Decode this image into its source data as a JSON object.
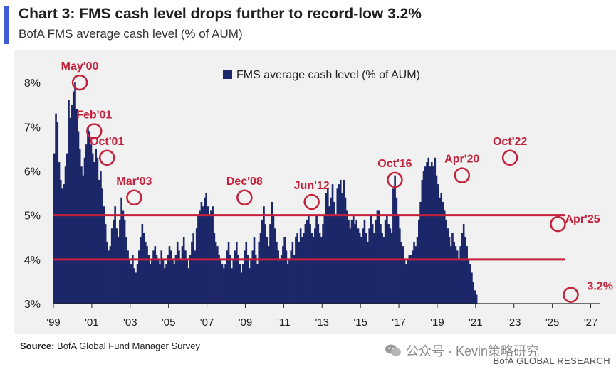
{
  "header": {
    "title": "Chart 3: FMS cash level drops further to record-low 3.2%",
    "subtitle": "BofA FMS average cash level (% of AUM)"
  },
  "footer": {
    "source_label": "Source:",
    "source_text": "BofA Global Fund Manager Survey",
    "watermark": "公众号 · Kevin策略研究",
    "brand": "BofA GLOBAL RESEARCH"
  },
  "colors": {
    "accent": "#3d5bd9",
    "bar": "#1c2769",
    "highlight": "#c4213a",
    "panel": "#f1f1f1"
  },
  "chart_data": {
    "type": "bar",
    "ylim": [
      3,
      8.5
    ],
    "xlim": [
      1999,
      2027.5
    ],
    "y_ticks": [
      "3%",
      "4%",
      "5%",
      "6%",
      "7%",
      "8%"
    ],
    "x_ticks": [
      "'99",
      "'01",
      "'03",
      "'05",
      "'07",
      "'09",
      "'11",
      "'13",
      "'15",
      "'17",
      "'19",
      "'21",
      "'23",
      "'25",
      "'27"
    ],
    "legend": "FMS average cash level (% of AUM)",
    "legend_position": "top-center",
    "reference_lines": [
      5.0,
      4.0
    ],
    "series": [
      {
        "name": "FMS average cash level (% of AUM)",
        "start": "1999-01",
        "frequency": "monthly",
        "values": [
          6.4,
          7.3,
          7.1,
          6.2,
          5.8,
          5.6,
          5.7,
          6.1,
          6.4,
          7.6,
          7.2,
          7.5,
          7.8,
          8.0,
          7.4,
          6.9,
          6.5,
          6.1,
          5.9,
          6.3,
          6.6,
          7.0,
          6.9,
          6.6,
          6.4,
          6.2,
          6.5,
          6.3,
          5.8,
          6.0,
          5.6,
          5.2,
          4.8,
          4.4,
          4.2,
          4.3,
          4.7,
          4.9,
          5.2,
          4.7,
          4.5,
          4.9,
          5.4,
          5.1,
          4.9,
          4.5,
          4.2,
          4.0,
          3.9,
          4.1,
          3.8,
          3.7,
          3.9,
          4.2,
          4.5,
          4.8,
          4.6,
          4.4,
          4.3,
          4.1,
          3.9,
          4.0,
          4.2,
          4.3,
          4.1,
          4.0,
          3.9,
          4.2,
          4.0,
          3.8,
          3.9,
          4.1,
          4.3,
          4.2,
          4.0,
          3.9,
          4.1,
          4.4,
          4.2,
          4.0,
          4.3,
          4.5,
          4.2,
          4.0,
          3.8,
          4.1,
          4.4,
          4.6,
          4.2,
          4.7,
          5.0,
          5.1,
          5.3,
          5.2,
          5.4,
          5.5,
          5.2,
          5.0,
          5.1,
          5.2,
          4.6,
          4.4,
          4.3,
          4.1,
          4.0,
          3.9,
          3.8,
          3.9,
          4.2,
          4.4,
          4.1,
          3.8,
          4.0,
          4.2,
          4.4,
          4.1,
          3.9,
          3.7,
          3.9,
          4.2,
          4.4,
          4.1,
          3.8,
          4.0,
          4.2,
          4.5,
          4.1,
          3.9,
          4.4,
          4.6,
          4.9,
          5.2,
          4.8,
          4.5,
          4.3,
          4.8,
          5.3,
          5.0,
          4.7,
          4.4,
          4.2,
          4.0,
          4.1,
          4.3,
          4.5,
          4.2,
          3.9,
          4.0,
          4.2,
          4.4,
          4.1,
          4.5,
          4.6,
          4.4,
          4.7,
          4.5,
          4.6,
          4.8,
          4.9,
          5.0,
          4.8,
          4.6,
          4.5,
          4.7,
          5.0,
          4.8,
          4.6,
          4.5,
          4.8,
          5.0,
          5.5,
          5.6,
          5.2,
          5.4,
          5.7,
          5.3,
          5.0,
          5.6,
          5.7,
          5.8,
          5.5,
          5.8,
          5.4,
          5.1,
          4.9,
          4.7,
          4.9,
          5.0,
          4.8,
          4.9,
          4.7,
          4.6,
          4.5,
          4.7,
          4.9,
          4.6,
          4.4,
          4.7,
          5.0,
          4.8,
          4.6,
          4.9,
          5.1,
          5.1,
          4.8,
          4.6,
          4.5,
          4.9,
          5.0,
          4.8,
          4.7,
          4.6,
          5.6,
          5.9,
          5.4,
          5.0,
          4.7,
          4.4,
          4.3,
          4.0,
          3.9,
          4.0,
          4.1,
          4.1,
          4.2,
          4.4,
          4.3,
          4.5,
          4.9,
          5.3,
          5.8,
          6.0,
          6.1,
          6.2,
          6.3,
          6.1,
          6.2,
          6.1,
          6.3,
          5.9,
          5.7,
          5.4,
          5.5,
          5.3,
          5.1,
          4.9,
          4.7,
          4.5,
          4.3,
          4.6,
          4.4,
          4.3,
          4.2,
          4.0,
          4.3,
          4.6,
          4.8,
          4.5,
          4.3,
          4.0,
          3.9,
          3.7,
          3.5,
          3.3,
          3.2
        ]
      }
    ],
    "annotations": [
      {
        "label": "May'00",
        "date": "2000-05",
        "value": 8.0
      },
      {
        "label": "Feb'01",
        "date": "2001-02",
        "value": 6.9
      },
      {
        "label": "Oct'01",
        "date": "2001-10",
        "value": 6.3
      },
      {
        "label": "Mar'03",
        "date": "2003-03",
        "value": 5.4
      },
      {
        "label": "Dec'08",
        "date": "2008-12",
        "value": 5.4
      },
      {
        "label": "Jun'12",
        "date": "2012-06",
        "value": 5.3
      },
      {
        "label": "Oct'16",
        "date": "2016-10",
        "value": 5.8
      },
      {
        "label": "Apr'20",
        "date": "2020-04",
        "value": 5.9
      },
      {
        "label": "Oct'22",
        "date": "2022-10",
        "value": 6.3
      },
      {
        "label": "Apr'25",
        "date": "2025-04",
        "value": 4.8
      },
      {
        "label": "3.2%",
        "date": "2025-12",
        "value": 3.2
      }
    ]
  }
}
